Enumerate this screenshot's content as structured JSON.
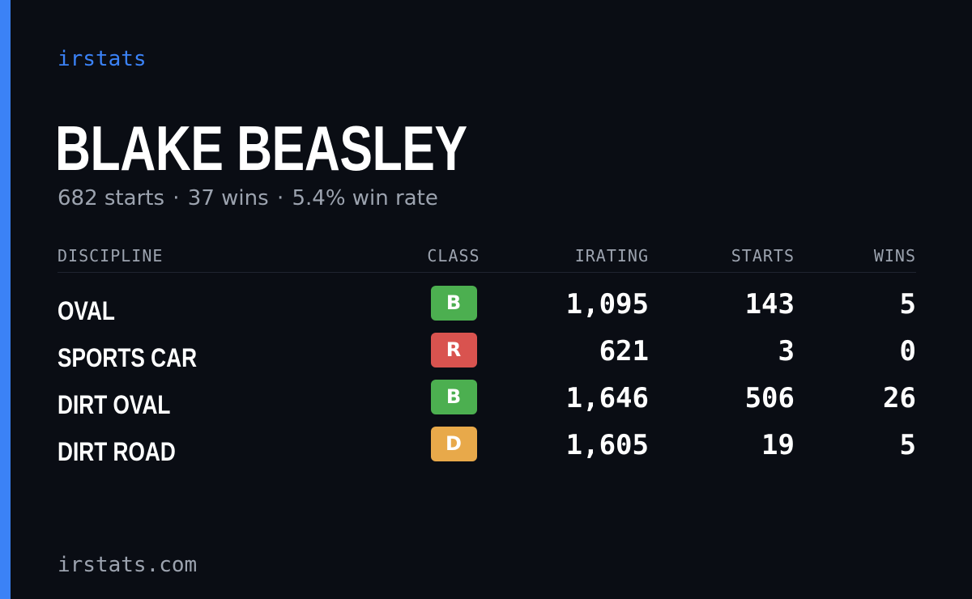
{
  "brand": "irstats",
  "player": {
    "name": "BLAKE BEASLEY",
    "starts_text": "682 starts",
    "wins_text": "37 wins",
    "winrate_text": "5.4% win rate",
    "separator": "·"
  },
  "table": {
    "headers": {
      "discipline": "DISCIPLINE",
      "class": "CLASS",
      "irating": "IRATING",
      "starts": "STARTS",
      "wins": "WINS"
    },
    "rows": [
      {
        "discipline": "OVAL",
        "class": "B",
        "class_color": "#4caf50",
        "irating": "1,095",
        "starts": "143",
        "wins": "5"
      },
      {
        "discipline": "SPORTS CAR",
        "class": "R",
        "class_color": "#d9534f",
        "irating": "621",
        "starts": "3",
        "wins": "0"
      },
      {
        "discipline": "DIRT OVAL",
        "class": "B",
        "class_color": "#4caf50",
        "irating": "1,646",
        "starts": "506",
        "wins": "26"
      },
      {
        "discipline": "DIRT ROAD",
        "class": "D",
        "class_color": "#e8a94a",
        "irating": "1,605",
        "starts": "19",
        "wins": "5"
      }
    ]
  },
  "footer": "irstats.com",
  "colors": {
    "accent": "#3b82f6",
    "background": "#0a0d14",
    "muted_text": "#9ca3af"
  }
}
